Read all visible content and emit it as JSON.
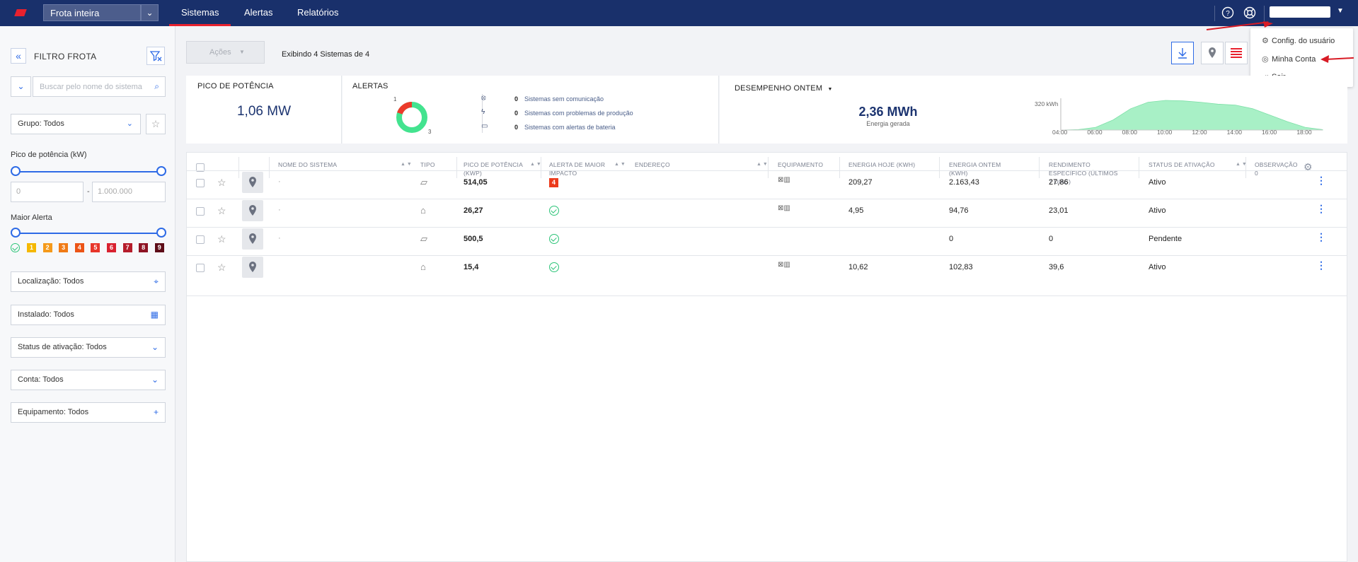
{
  "topbar": {
    "fleet_select": "Frota inteira",
    "tabs": [
      "Sistemas",
      "Alertas",
      "Relatórios"
    ],
    "active_tab": "Sistemas",
    "icons": [
      "help-icon",
      "support-icon"
    ],
    "caret": "▼"
  },
  "user_menu": {
    "items": [
      "Config. do usuário",
      "Minha Conta",
      "Sair"
    ]
  },
  "sidebar": {
    "title": "FILTRO FROTA",
    "search_placeholder": "Buscar pelo nome do sistema",
    "group": "Grupo: Todos",
    "peak_label": "Pico de potência (kW)",
    "peak_min": "0",
    "peak_max": "1.000.000",
    "peak_dash": "-",
    "alert_label": "Maior Alerta",
    "alert_levels": [
      "1",
      "2",
      "3",
      "4",
      "5",
      "6",
      "7",
      "8",
      "9"
    ],
    "alert_colors": [
      "#f5b800",
      "#f59a1b",
      "#f07b16",
      "#ec5416",
      "#e8362a",
      "#d92230",
      "#b51d2b",
      "#8e1424",
      "#5e0d18"
    ],
    "location": "Localização: Todos",
    "installed": "Instalado: Todos",
    "activation": "Status de ativação: Todos",
    "account": "Conta: Todos",
    "equipment": "Equipamento: Todos"
  },
  "toolbar": {
    "actions": "Ações",
    "showing": "Exibindo 4 Sistemas de 4"
  },
  "summary": {
    "peak_title": "PICO DE POTÊNCIA",
    "peak_value": "1,06 MW",
    "alerts_title": "ALERTAS",
    "donut_red": "1",
    "donut_green": "3",
    "alert_items": [
      {
        "count": "0",
        "text": "Sistemas sem comunicação"
      },
      {
        "count": "0",
        "text": "Sistemas com problemas de produção"
      },
      {
        "count": "0",
        "text": "Sistemas com alertas de bateria"
      }
    ],
    "perf_title": "DESEMPENHO ONTEM",
    "perf_value": "2,36 MWh",
    "perf_sub": "Energia gerada",
    "chart_ylabel": "320 kWh"
  },
  "chart_data": {
    "type": "area",
    "x": [
      "04:00",
      "05:00",
      "06:00",
      "07:00",
      "08:00",
      "09:00",
      "10:00",
      "11:00",
      "12:00",
      "13:00",
      "14:00",
      "15:00",
      "16:00",
      "17:00",
      "18:00",
      "19:00"
    ],
    "values": [
      0,
      5,
      30,
      110,
      230,
      300,
      320,
      315,
      300,
      280,
      270,
      230,
      160,
      90,
      30,
      5
    ],
    "tick_labels": [
      "04:00",
      "06:00",
      "08:00",
      "10:00",
      "12:00",
      "14:00",
      "16:00",
      "18:00"
    ],
    "ylim": [
      0,
      320
    ],
    "color": "#a8f0c6"
  },
  "table": {
    "headers": [
      "NOME DO SISTEMA",
      "TIPO",
      "PICO DE POTÊNCIA (KWP)",
      "ALERTA DE MAIOR IMPACTO",
      "ENDEREÇO",
      "EQUIPAMENTO",
      "ENERGIA HOJE (KWH)",
      "ENERGIA ONTEM (KWH)",
      "RENDIMENTO ESPECÍFICO (ÚLTIMOS 7 DIAS)",
      "STATUS DE ATIVAÇÃO",
      "OBSERVAÇÃO"
    ],
    "rows": [
      {
        "name": "·",
        "peak": "514,05",
        "alert": "4",
        "today": "209,27",
        "yesterday": "2.163,43",
        "yield": "27,86",
        "status": "Ativo"
      },
      {
        "name": "·",
        "peak": "26,27",
        "alert": "ok",
        "today": "4,95",
        "yesterday": "94,76",
        "yield": "23,01",
        "status": "Ativo"
      },
      {
        "name": "·",
        "peak": "500,5",
        "alert": "ok",
        "today": "",
        "yesterday": "0",
        "yield": "0",
        "status": "Pendente"
      },
      {
        "name": "",
        "peak": "15,4",
        "alert": "ok",
        "today": "10,62",
        "yesterday": "102,83",
        "yield": "39,6",
        "status": "Ativo"
      }
    ],
    "obs_count": "0"
  }
}
